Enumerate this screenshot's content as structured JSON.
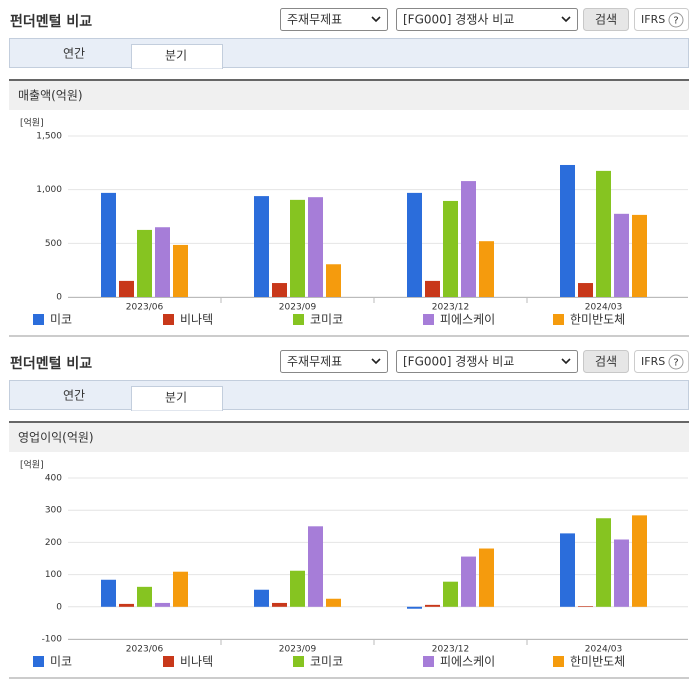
{
  "sections": [
    {
      "title": "펀더멘털 비교",
      "controls": {
        "statement": "주재무제표",
        "compare": "[FG000] 경쟁사 비교",
        "search": "검색",
        "ifrs": "IFRS",
        "help": "?"
      },
      "tabs": [
        "연간",
        "분기"
      ]
    },
    {
      "title": "펀더멘털 비교",
      "controls": {
        "statement": "주재무제표",
        "compare": "[FG000] 경쟁사 비교",
        "search": "검색",
        "ifrs": "IFRS",
        "help": "?"
      },
      "tabs": [
        "연간",
        "분기"
      ]
    }
  ],
  "chart_data": [
    {
      "type": "bar",
      "title": "매출액(억원)",
      "y_label": "[억원]",
      "categories": [
        "2023/06",
        "2023/09",
        "2023/12",
        "2024/03"
      ],
      "series": [
        {
          "name": "미코",
          "color": "#2b6ddb",
          "values": [
            970,
            940,
            970,
            1230
          ]
        },
        {
          "name": "비나텍",
          "color": "#c8381a",
          "values": [
            150,
            130,
            150,
            130
          ]
        },
        {
          "name": "코미코",
          "color": "#86c421",
          "values": [
            625,
            905,
            895,
            1175
          ]
        },
        {
          "name": "피에스케이",
          "color": "#a67dd8",
          "values": [
            650,
            930,
            1080,
            775
          ]
        },
        {
          "name": "한미반도체",
          "color": "#f59b0d",
          "values": [
            485,
            305,
            520,
            765
          ]
        }
      ],
      "ylim": [
        0,
        1500
      ],
      "yticks": [
        0,
        500,
        {
          "value": 1000,
          "label": "1,000"
        },
        {
          "value": 1500,
          "label": "1,500"
        }
      ],
      "grid": true
    },
    {
      "type": "bar",
      "title": "영업이익(억원)",
      "y_label": "[억원]",
      "categories": [
        "2023/06",
        "2023/09",
        "2023/12",
        "2024/03"
      ],
      "series": [
        {
          "name": "미코",
          "color": "#2b6ddb",
          "values": [
            84,
            53,
            -6,
            228
          ]
        },
        {
          "name": "비나텍",
          "color": "#c8381a",
          "values": [
            9,
            12,
            6,
            2
          ]
        },
        {
          "name": "코미코",
          "color": "#86c421",
          "values": [
            62,
            112,
            78,
            275
          ]
        },
        {
          "name": "피에스케이",
          "color": "#a67dd8",
          "values": [
            12,
            250,
            156,
            209
          ]
        },
        {
          "name": "한미반도체",
          "color": "#f59b0d",
          "values": [
            109,
            25,
            181,
            284
          ]
        }
      ],
      "ylim": [
        -100,
        400
      ],
      "yticks": [
        -100,
        0,
        100,
        200,
        300,
        400
      ],
      "grid": true
    }
  ]
}
